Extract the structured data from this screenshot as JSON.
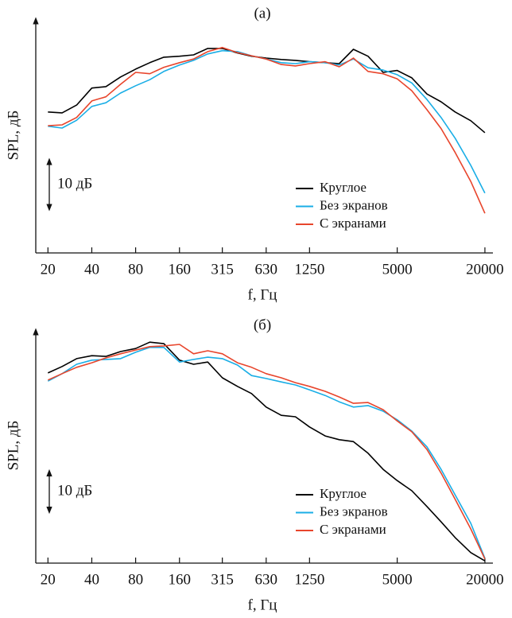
{
  "chart_data": [
    {
      "type": "line",
      "title": "(а)",
      "ylabel": "SPL, дБ",
      "xlabel": "f, Гц",
      "log_x": true,
      "x": [
        20,
        25,
        31.5,
        40,
        50,
        63,
        80,
        100,
        125,
        160,
        200,
        250,
        315,
        400,
        500,
        630,
        800,
        1000,
        1250,
        1600,
        2000,
        2500,
        3150,
        4000,
        5000,
        6300,
        8000,
        10000,
        12500,
        16000,
        20000
      ],
      "xlim": [
        16.5,
        22700
      ],
      "xticks": [
        20,
        40,
        80,
        160,
        315,
        630,
        1250,
        5000,
        20000
      ],
      "ylim": [
        0,
        48
      ],
      "scale_bar": {
        "value": 10,
        "label": "10 дБ"
      },
      "series": [
        {
          "name": "Круглое",
          "color": "#000000",
          "values": [
            30.6,
            30.4,
            32.1,
            35.8,
            36.1,
            38.2,
            39.9,
            41.3,
            42.5,
            42.7,
            43.0,
            44.4,
            44.4,
            43.4,
            42.7,
            42.3,
            42.0,
            41.8,
            41.5,
            41.3,
            41.1,
            44.2,
            42.7,
            39.2,
            39.6,
            38.0,
            34.5,
            32.8,
            30.6,
            28.7,
            26.1
          ]
        },
        {
          "name": "Без экранов",
          "color": "#1aaee6",
          "values": [
            27.5,
            27.1,
            28.8,
            31.8,
            32.6,
            34.7,
            36.3,
            37.6,
            39.4,
            40.8,
            41.8,
            43.2,
            43.9,
            43.7,
            42.8,
            42.1,
            41.3,
            41.1,
            41.5,
            41.3,
            40.8,
            42.1,
            40.2,
            39.7,
            38.7,
            36.9,
            33.3,
            29.4,
            24.9,
            19.0,
            13.0
          ]
        },
        {
          "name": "С экранами",
          "color": "#e8452c",
          "values": [
            27.6,
            27.8,
            29.4,
            33.0,
            33.9,
            36.6,
            39.2,
            38.9,
            40.3,
            41.3,
            42.1,
            43.7,
            44.6,
            43.5,
            42.8,
            42.1,
            40.9,
            40.6,
            41.1,
            41.5,
            40.4,
            42.3,
            39.4,
            38.9,
            37.8,
            35.2,
            31.1,
            27.0,
            21.8,
            15.5,
            8.6
          ]
        }
      ]
    },
    {
      "type": "line",
      "title": "(б)",
      "ylabel": "SPL, дБ",
      "xlabel": "f, Гц",
      "log_x": true,
      "x": [
        20,
        25,
        31.5,
        40,
        50,
        63,
        80,
        100,
        125,
        160,
        200,
        250,
        315,
        400,
        500,
        630,
        800,
        1000,
        1250,
        1600,
        2000,
        2500,
        3150,
        4000,
        5000,
        6300,
        8000,
        10000,
        12500,
        16000,
        20000
      ],
      "xlim": [
        16.5,
        22700
      ],
      "xticks": [
        20,
        40,
        80,
        160,
        315,
        630,
        1250,
        5000,
        20000
      ],
      "ylim": [
        0,
        60
      ],
      "scale_bar": {
        "value": 10,
        "label": "10 дБ"
      },
      "series": [
        {
          "name": "Круглое",
          "color": "#000000",
          "values": [
            50.7,
            52.4,
            54.5,
            55.3,
            55.1,
            56.4,
            57.2,
            58.9,
            58.5,
            54.1,
            53.0,
            53.6,
            49.4,
            47.1,
            45.2,
            41.6,
            39.4,
            39.0,
            36.3,
            33.9,
            32.9,
            32.4,
            29.3,
            25.0,
            22.0,
            19.3,
            15.1,
            11.0,
            6.8,
            2.8,
            0.6
          ]
        },
        {
          "name": "Без экранов",
          "color": "#1aaee6",
          "values": [
            48.5,
            50.5,
            53.0,
            54.1,
            54.3,
            54.5,
            56.2,
            57.5,
            57.5,
            53.6,
            54.3,
            54.9,
            54.5,
            52.8,
            50.0,
            49.2,
            48.3,
            47.5,
            46.2,
            44.7,
            43.0,
            41.6,
            42.0,
            40.5,
            38.2,
            35.2,
            31.0,
            25.0,
            18.2,
            10.6,
            1.3
          ]
        },
        {
          "name": "С экранами",
          "color": "#e8452c",
          "values": [
            48.8,
            50.5,
            52.2,
            53.4,
            54.7,
            55.8,
            56.8,
            57.7,
            57.9,
            58.3,
            55.8,
            56.6,
            55.8,
            53.4,
            52.2,
            50.5,
            49.4,
            48.1,
            47.1,
            45.8,
            44.3,
            42.6,
            42.8,
            40.9,
            37.9,
            35.0,
            30.3,
            24.0,
            17.0,
            9.1,
            1.1
          ]
        }
      ]
    }
  ]
}
